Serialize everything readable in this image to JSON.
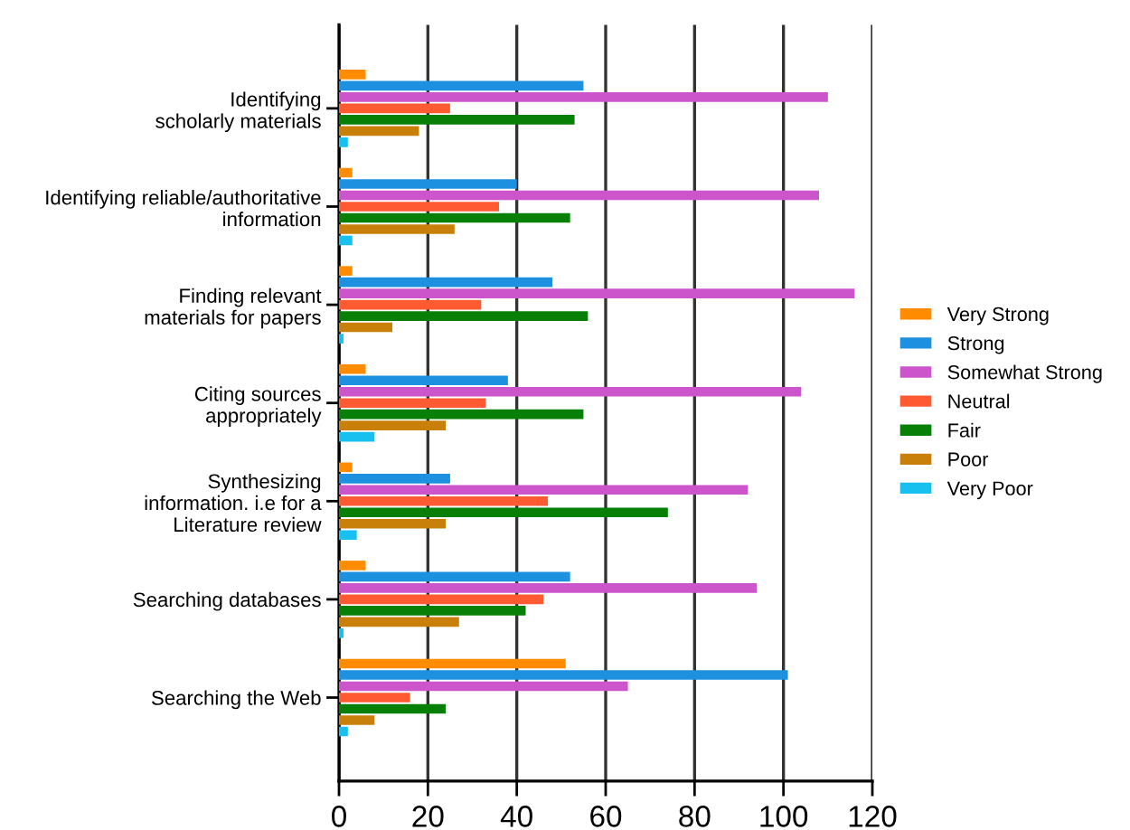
{
  "chart_data": {
    "type": "bar",
    "orientation": "horizontal",
    "categories": [
      "Identifying\nscholarly materials",
      "Identifying reliable/authoritative\ninformation",
      "Finding relevant\nmaterials for papers",
      "Citing sources\nappropriately",
      "Synthesizing\ninformation. i.e for a\nLiterature review",
      "Searching databases",
      "Searching the Web"
    ],
    "series": [
      {
        "name": "Very Strong",
        "color": "#ff8c00",
        "values": [
          6,
          3,
          3,
          6,
          3,
          6,
          51
        ]
      },
      {
        "name": "Strong",
        "color": "#1e90e0",
        "values": [
          55,
          40,
          48,
          38,
          25,
          52,
          101
        ]
      },
      {
        "name": "Somewhat Strong",
        "color": "#cc55cc",
        "values": [
          110,
          108,
          116,
          104,
          92,
          94,
          65
        ]
      },
      {
        "name": "Neutral",
        "color": "#ff5a32",
        "values": [
          25,
          36,
          32,
          33,
          47,
          46,
          16
        ]
      },
      {
        "name": "Fair",
        "color": "#088008",
        "values": [
          53,
          52,
          56,
          55,
          74,
          42,
          24
        ]
      },
      {
        "name": "Poor",
        "color": "#c8800a",
        "values": [
          18,
          26,
          12,
          24,
          24,
          27,
          8
        ]
      },
      {
        "name": "Very Poor",
        "color": "#18c0f0",
        "values": [
          2,
          3,
          1,
          8,
          4,
          1,
          2
        ]
      }
    ],
    "xlim": [
      0,
      120
    ],
    "xticks": [
      0,
      20,
      40,
      60,
      80,
      100,
      120
    ],
    "grid": "x",
    "legend": "right"
  }
}
